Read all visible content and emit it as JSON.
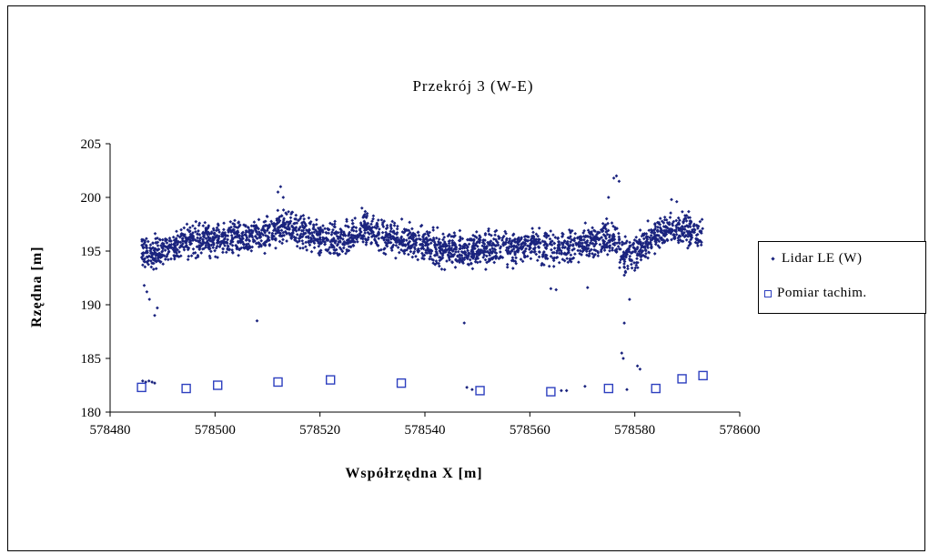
{
  "chart_data": {
    "type": "scatter",
    "title": "Przekrój 3 (W-E)",
    "xlabel": "Współrzędna X [m]",
    "ylabel": "Rzędna [m]",
    "xlim": [
      578480,
      578600
    ],
    "ylim": [
      180,
      205
    ],
    "xticks": [
      578480,
      578500,
      578520,
      578540,
      578560,
      578580,
      578600
    ],
    "yticks": [
      180,
      185,
      190,
      195,
      200,
      205
    ],
    "legend_position": "right",
    "grid": false,
    "series": [
      {
        "name": "Lidar LE (W)",
        "marker": "small-diamond",
        "color": "#1a237e",
        "profile": [
          [
            578486,
            195.0
          ],
          [
            578489,
            194.8
          ],
          [
            578492,
            195.3
          ],
          [
            578495,
            195.9
          ],
          [
            578498,
            196.2
          ],
          [
            578501,
            196.0
          ],
          [
            578504,
            196.2
          ],
          [
            578507,
            196.3
          ],
          [
            578510,
            196.6
          ],
          [
            578512,
            197.2
          ],
          [
            578514,
            197.0
          ],
          [
            578517,
            196.8
          ],
          [
            578520,
            196.2
          ],
          [
            578523,
            195.8
          ],
          [
            578526,
            196.3
          ],
          [
            578528,
            197.2
          ],
          [
            578531,
            196.5
          ],
          [
            578534,
            196.2
          ],
          [
            578537,
            195.9
          ],
          [
            578540,
            195.4
          ],
          [
            578543,
            195.2
          ],
          [
            578546,
            195.2
          ],
          [
            578549,
            195.0
          ],
          [
            578552,
            195.3
          ],
          [
            578555,
            195.2
          ],
          [
            578558,
            195.4
          ],
          [
            578561,
            195.6
          ],
          [
            578564,
            195.1
          ],
          [
            578567,
            195.4
          ],
          [
            578570,
            195.9
          ],
          [
            578573,
            196.0
          ],
          [
            578576,
            196.5
          ],
          [
            578578,
            194.5
          ],
          [
            578580,
            194.8
          ],
          [
            578583,
            196.2
          ],
          [
            578586,
            197.1
          ],
          [
            578589,
            196.9
          ],
          [
            578592,
            196.8
          ],
          [
            578593,
            196.5
          ]
        ],
        "spread": 1.3,
        "outliers": [
          [
            578486.5,
            191.8
          ],
          [
            578487,
            191.2
          ],
          [
            578487.5,
            190.5
          ],
          [
            578488.5,
            189.0
          ],
          [
            578489,
            189.7
          ],
          [
            578486.2,
            182.9
          ],
          [
            578486.8,
            182.8
          ],
          [
            578487.4,
            182.9
          ],
          [
            578488.0,
            182.8
          ],
          [
            578488.5,
            182.7
          ],
          [
            578508,
            188.5
          ],
          [
            578512,
            200.5
          ],
          [
            578512.5,
            201.0
          ],
          [
            578513,
            200.0
          ],
          [
            578528,
            199.0
          ],
          [
            578529,
            198.5
          ],
          [
            578547.5,
            188.3
          ],
          [
            578548,
            182.3
          ],
          [
            578549,
            182.1
          ],
          [
            578564,
            191.5
          ],
          [
            578565,
            191.4
          ],
          [
            578566,
            182.0
          ],
          [
            578567,
            182.0
          ],
          [
            578570.5,
            182.4
          ],
          [
            578571,
            191.6
          ],
          [
            578575,
            200.0
          ],
          [
            578576,
            201.8
          ],
          [
            578576.5,
            202.0
          ],
          [
            578577,
            201.5
          ],
          [
            578577.5,
            185.5
          ],
          [
            578577.8,
            185.0
          ],
          [
            578578,
            188.3
          ],
          [
            578578.5,
            182.1
          ],
          [
            578579,
            190.5
          ],
          [
            578580.5,
            184.3
          ],
          [
            578581,
            184.0
          ],
          [
            578587,
            199.8
          ],
          [
            578588,
            199.6
          ]
        ]
      },
      {
        "name": "Pomiar tachim.",
        "marker": "open-square",
        "color": "#2d3fbf",
        "x": [
          578486,
          578494.5,
          578500.5,
          578512,
          578522,
          578535.5,
          578550.5,
          578564,
          578575,
          578584,
          578589,
          578593
        ],
        "y": [
          182.3,
          182.2,
          182.5,
          182.8,
          183.0,
          182.7,
          182.0,
          181.9,
          182.2,
          182.2,
          183.1,
          183.4
        ]
      }
    ]
  }
}
